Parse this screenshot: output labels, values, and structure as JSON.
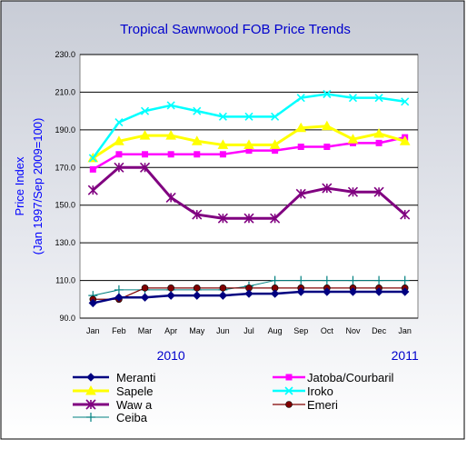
{
  "chart_data": {
    "type": "line",
    "title": "Tropical Sawnwood FOB Price Trends",
    "ylabel_line1": "Price Index",
    "ylabel_line2": "(Jan 1997/Sep 2009=100)",
    "ylim": [
      90,
      230
    ],
    "yticks": [
      "230.0",
      "210.0",
      "190.0",
      "170.0",
      "150.0",
      "130.0",
      "110.0",
      "90.0"
    ],
    "categories": [
      "Jan",
      "Feb",
      "Mar",
      "Apr",
      "May",
      "Jun",
      "Jul",
      "Aug",
      "Sep",
      "Oct",
      "Nov",
      "Dec",
      "Jan"
    ],
    "year_labels": [
      {
        "label": "2010",
        "at": 3
      },
      {
        "label": "2011",
        "at": 12
      }
    ],
    "legend": "bottom",
    "grid": true,
    "series": [
      {
        "name": "Meranti",
        "color": "#000080",
        "marker": "diamond",
        "values": [
          98,
          101,
          101,
          102,
          102,
          102,
          103,
          103,
          104,
          104,
          104,
          104,
          104
        ]
      },
      {
        "name": "Jatoba/Courbaril",
        "color": "#ff00ff",
        "marker": "square",
        "values": [
          169,
          177,
          177,
          177,
          177,
          177,
          179,
          179,
          181,
          181,
          183,
          183,
          186
        ]
      },
      {
        "name": "Sapele",
        "color": "#ffff00",
        "marker": "triangle",
        "values": [
          175,
          184,
          187,
          187,
          184,
          182,
          182,
          182,
          191,
          192,
          185,
          188,
          184
        ]
      },
      {
        "name": "Iroko",
        "color": "#00ffff",
        "marker": "x",
        "values": [
          175,
          194,
          200,
          203,
          200,
          197,
          197,
          197,
          207,
          209,
          207,
          207,
          205
        ]
      },
      {
        "name": "Waw a",
        "color": "#800080",
        "marker": "star",
        "values": [
          158,
          170,
          170,
          154,
          145,
          143,
          143,
          143,
          156,
          159,
          157,
          157,
          145
        ]
      },
      {
        "name": "Emeri",
        "color": "#800000",
        "marker": "circle",
        "values": [
          100,
          100,
          106,
          106,
          106,
          106,
          106,
          106,
          106,
          106,
          106,
          106,
          106
        ]
      },
      {
        "name": "Ceiba",
        "color": "#008080",
        "marker": "plus",
        "values": [
          102,
          105,
          105,
          105,
          105,
          105,
          107,
          110,
          110,
          110,
          110,
          110,
          110
        ]
      }
    ]
  }
}
